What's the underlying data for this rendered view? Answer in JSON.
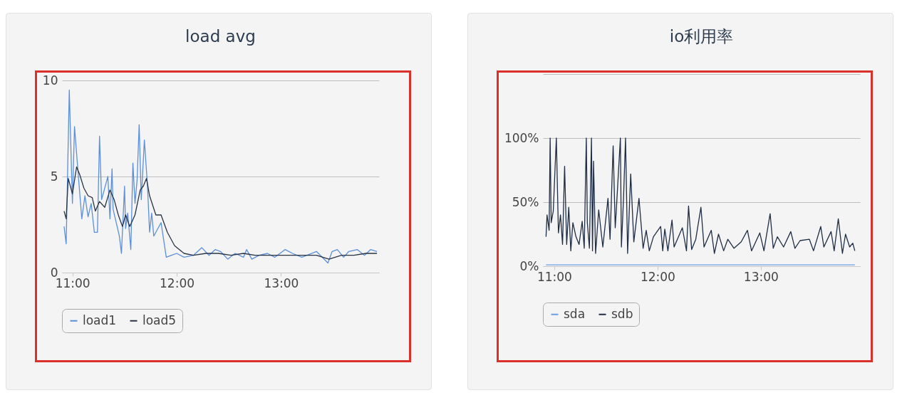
{
  "chart_data": [
    {
      "type": "line",
      "title": "load avg",
      "xlim": [
        10.9,
        13.94
      ],
      "xticks": [
        {
          "value": 11,
          "label": "11:00"
        },
        {
          "value": 12,
          "label": "12:00"
        },
        {
          "value": 13,
          "label": "13:00"
        }
      ],
      "ylim": [
        0,
        10
      ],
      "yticks": [
        0,
        5,
        10
      ],
      "grid": "y",
      "legend": "bottom",
      "line_style": "solid",
      "marker": "none",
      "series": [
        {
          "name": "load1",
          "color": "#5b8fd9",
          "x": [
            10.92,
            10.94,
            10.97,
            11.0,
            11.02,
            11.05,
            11.09,
            11.12,
            11.15,
            11.18,
            11.21,
            11.24,
            11.26,
            11.28,
            11.34,
            11.36,
            11.38,
            11.39,
            11.45,
            11.47,
            11.5,
            11.51,
            11.53,
            11.56,
            11.58,
            11.6,
            11.62,
            11.64,
            11.66,
            11.69,
            11.72,
            11.74,
            11.76,
            11.78,
            11.85,
            11.9,
            11.95,
            12.0,
            12.07,
            12.16,
            12.24,
            12.31,
            12.37,
            12.42,
            12.49,
            12.56,
            12.64,
            12.67,
            12.72,
            12.79,
            12.87,
            12.94,
            13.04,
            13.11,
            13.2,
            13.34,
            13.45,
            13.49,
            13.54,
            13.6,
            13.65,
            13.73,
            13.8,
            13.86,
            13.92
          ],
          "values": [
            2.4,
            1.5,
            9.5,
            3.6,
            7.6,
            5.5,
            2.8,
            4.0,
            2.9,
            3.6,
            2.1,
            2.1,
            7.1,
            3.8,
            5.0,
            2.8,
            5.4,
            3.3,
            1.9,
            1.0,
            4.5,
            2.3,
            3.1,
            1.2,
            5.7,
            3.6,
            4.8,
            7.7,
            3.8,
            6.9,
            4.5,
            2.1,
            3.1,
            1.9,
            2.6,
            0.8,
            0.9,
            1.0,
            0.8,
            0.9,
            1.3,
            0.9,
            1.2,
            1.1,
            0.7,
            1.0,
            0.8,
            1.2,
            0.7,
            0.9,
            1.0,
            0.8,
            1.2,
            1.0,
            0.8,
            1.1,
            0.5,
            1.1,
            1.2,
            0.8,
            1.1,
            1.2,
            0.9,
            1.2,
            1.1
          ]
        },
        {
          "name": "load5",
          "color": "#2b3445",
          "x": [
            10.92,
            10.94,
            10.96,
            11.0,
            11.04,
            11.07,
            11.11,
            11.15,
            11.19,
            11.22,
            11.26,
            11.31,
            11.36,
            11.4,
            11.44,
            11.48,
            11.51,
            11.55,
            11.6,
            11.65,
            11.68,
            11.71,
            11.74,
            11.8,
            11.85,
            11.91,
            11.98,
            12.07,
            12.16,
            12.28,
            12.4,
            12.52,
            12.64,
            12.75,
            12.87,
            12.99,
            13.11,
            13.22,
            13.34,
            13.46,
            13.58,
            13.7,
            13.81,
            13.92
          ],
          "values": [
            3.2,
            2.8,
            4.9,
            4.1,
            5.5,
            5.1,
            4.4,
            4.0,
            3.9,
            3.2,
            3.7,
            3.4,
            4.3,
            3.8,
            3.0,
            2.4,
            3.0,
            2.4,
            3.0,
            4.3,
            4.5,
            4.9,
            4.0,
            3.0,
            3.0,
            2.1,
            1.4,
            1.0,
            0.9,
            1.0,
            1.0,
            0.9,
            1.0,
            0.9,
            0.9,
            0.9,
            0.9,
            0.9,
            0.9,
            0.7,
            0.9,
            0.9,
            1.0,
            1.0
          ]
        }
      ]
    },
    {
      "type": "line",
      "title": "io利用率",
      "xlim": [
        10.89,
        13.96
      ],
      "xticks": [
        {
          "value": 11,
          "label": "11:00"
        },
        {
          "value": 12,
          "label": "12:00"
        },
        {
          "value": 13,
          "label": "13:00"
        }
      ],
      "ylim": [
        0,
        150
      ],
      "yticks": [
        {
          "value": 0,
          "label": "0%"
        },
        {
          "value": 50,
          "label": "50%"
        },
        {
          "value": 100,
          "label": "100%"
        },
        {
          "value": 150,
          "label": null
        }
      ],
      "grid": "y",
      "legend": "bottom",
      "line_style": "solid",
      "marker": "none",
      "series": [
        {
          "name": "sda",
          "color": "#6d9ee0",
          "x": [
            10.92,
            13.91
          ],
          "values": [
            1,
            1
          ]
        },
        {
          "name": "sdb",
          "color": "#1f2d45",
          "x": [
            10.92,
            10.93,
            10.95,
            10.96,
            10.97,
            10.99,
            11.02,
            11.04,
            11.06,
            11.08,
            11.1,
            11.12,
            11.14,
            11.16,
            11.18,
            11.21,
            11.24,
            11.27,
            11.29,
            11.31,
            11.32,
            11.34,
            11.36,
            11.37,
            11.38,
            11.4,
            11.43,
            11.47,
            11.52,
            11.54,
            11.57,
            11.59,
            11.6,
            11.64,
            11.65,
            11.67,
            11.69,
            11.71,
            11.74,
            11.77,
            11.82,
            11.86,
            11.89,
            11.92,
            11.96,
            12.03,
            12.05,
            12.07,
            12.1,
            12.14,
            12.16,
            12.24,
            12.28,
            12.3,
            12.33,
            12.37,
            12.42,
            12.45,
            12.52,
            12.55,
            12.59,
            12.64,
            12.68,
            12.74,
            12.81,
            12.87,
            12.91,
            12.99,
            13.03,
            13.09,
            13.12,
            13.16,
            13.22,
            13.29,
            13.33,
            13.38,
            13.47,
            13.51,
            13.58,
            13.61,
            13.68,
            13.71,
            13.75,
            13.79,
            13.82,
            13.86,
            13.89,
            13.91
          ],
          "values": [
            23,
            40,
            28,
            100,
            34,
            43,
            100,
            26,
            40,
            17,
            78,
            17,
            46,
            12,
            34,
            23,
            17,
            35,
            14,
            100,
            34,
            14,
            100,
            12,
            82,
            10,
            44,
            15,
            53,
            21,
            94,
            30,
            43,
            100,
            15,
            52,
            100,
            10,
            72,
            19,
            53,
            14,
            28,
            12,
            23,
            31,
            12,
            29,
            12,
            36,
            15,
            30,
            12,
            47,
            13,
            21,
            46,
            15,
            28,
            10,
            25,
            12,
            21,
            14,
            19,
            28,
            12,
            26,
            12,
            41,
            14,
            23,
            15,
            27,
            14,
            20,
            21,
            12,
            31,
            15,
            27,
            12,
            37,
            10,
            25,
            15,
            18,
            12
          ]
        }
      ]
    }
  ]
}
